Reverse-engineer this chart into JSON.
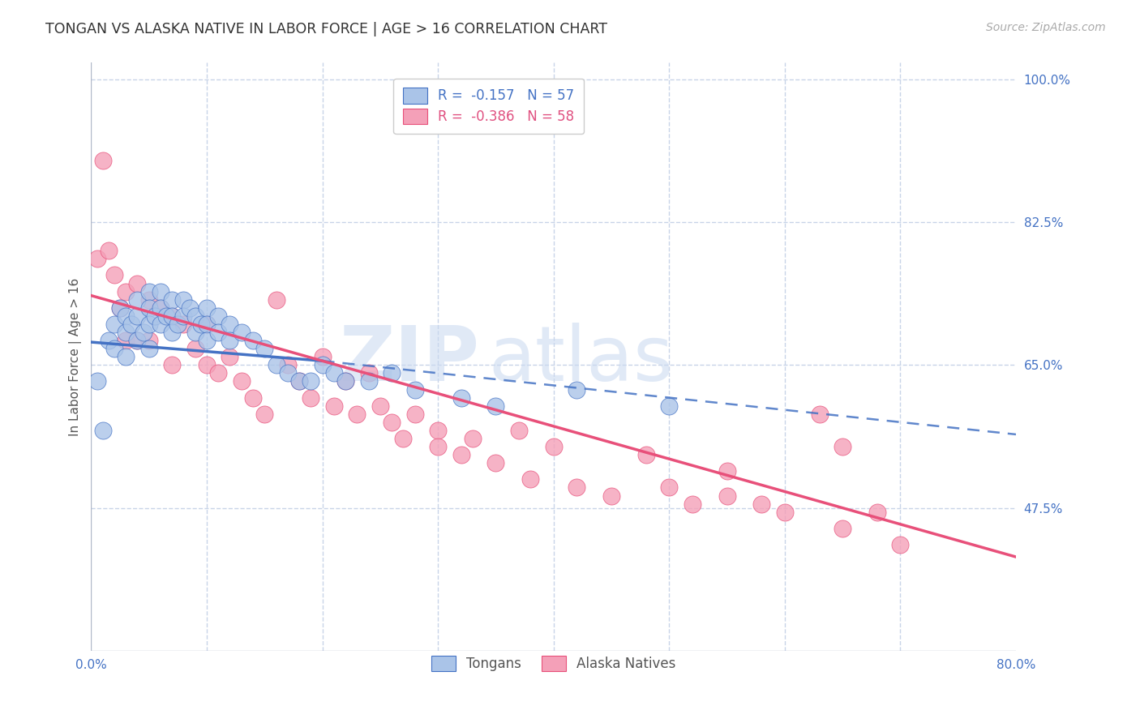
{
  "title": "TONGAN VS ALASKA NATIVE IN LABOR FORCE | AGE > 16 CORRELATION CHART",
  "source": "Source: ZipAtlas.com",
  "ylabel": "In Labor Force | Age > 16",
  "x_min": 0.0,
  "x_max": 0.8,
  "y_min": 0.3,
  "y_max": 1.02,
  "y_ticks_right": [
    0.475,
    0.65,
    0.825,
    1.0
  ],
  "y_tick_labels_right": [
    "47.5%",
    "65.0%",
    "82.5%",
    "100.0%"
  ],
  "legend_label1": "R =  -0.157   N = 57",
  "legend_label2": "R =  -0.386   N = 58",
  "legend_label_bottom1": "Tongans",
  "legend_label_bottom2": "Alaska Natives",
  "color_blue": "#aac4e8",
  "color_pink": "#f4a0b8",
  "color_blue_line": "#4472c4",
  "color_pink_line": "#e8507a",
  "color_blue_text": "#4472c4",
  "color_pink_text": "#e05080",
  "watermark_zip": "ZIP",
  "watermark_atlas": "atlas",
  "background_color": "#ffffff",
  "grid_color": "#c8d4e8",
  "tongan_x": [
    0.005,
    0.01,
    0.015,
    0.02,
    0.02,
    0.025,
    0.03,
    0.03,
    0.03,
    0.035,
    0.04,
    0.04,
    0.04,
    0.045,
    0.05,
    0.05,
    0.05,
    0.05,
    0.055,
    0.06,
    0.06,
    0.06,
    0.065,
    0.07,
    0.07,
    0.07,
    0.075,
    0.08,
    0.08,
    0.085,
    0.09,
    0.09,
    0.095,
    0.1,
    0.1,
    0.1,
    0.11,
    0.11,
    0.12,
    0.12,
    0.13,
    0.14,
    0.15,
    0.16,
    0.17,
    0.18,
    0.19,
    0.2,
    0.21,
    0.22,
    0.24,
    0.26,
    0.28,
    0.32,
    0.35,
    0.42,
    0.5
  ],
  "tongan_y": [
    0.63,
    0.57,
    0.68,
    0.7,
    0.67,
    0.72,
    0.71,
    0.69,
    0.66,
    0.7,
    0.73,
    0.71,
    0.68,
    0.69,
    0.74,
    0.72,
    0.7,
    0.67,
    0.71,
    0.74,
    0.72,
    0.7,
    0.71,
    0.73,
    0.71,
    0.69,
    0.7,
    0.73,
    0.71,
    0.72,
    0.71,
    0.69,
    0.7,
    0.72,
    0.7,
    0.68,
    0.71,
    0.69,
    0.7,
    0.68,
    0.69,
    0.68,
    0.67,
    0.65,
    0.64,
    0.63,
    0.63,
    0.65,
    0.64,
    0.63,
    0.63,
    0.64,
    0.62,
    0.61,
    0.6,
    0.62,
    0.6
  ],
  "alaska_x": [
    0.005,
    0.01,
    0.015,
    0.02,
    0.025,
    0.03,
    0.03,
    0.04,
    0.04,
    0.05,
    0.05,
    0.06,
    0.07,
    0.07,
    0.08,
    0.09,
    0.1,
    0.1,
    0.11,
    0.12,
    0.13,
    0.14,
    0.15,
    0.16,
    0.17,
    0.18,
    0.19,
    0.2,
    0.21,
    0.22,
    0.23,
    0.24,
    0.25,
    0.26,
    0.27,
    0.28,
    0.3,
    0.3,
    0.32,
    0.33,
    0.35,
    0.37,
    0.38,
    0.4,
    0.42,
    0.45,
    0.48,
    0.5,
    0.52,
    0.55,
    0.55,
    0.58,
    0.6,
    0.63,
    0.65,
    0.65,
    0.68,
    0.7
  ],
  "alaska_y": [
    0.78,
    0.9,
    0.79,
    0.76,
    0.72,
    0.74,
    0.68,
    0.75,
    0.68,
    0.73,
    0.68,
    0.72,
    0.71,
    0.65,
    0.7,
    0.67,
    0.7,
    0.65,
    0.64,
    0.66,
    0.63,
    0.61,
    0.59,
    0.73,
    0.65,
    0.63,
    0.61,
    0.66,
    0.6,
    0.63,
    0.59,
    0.64,
    0.6,
    0.58,
    0.56,
    0.59,
    0.57,
    0.55,
    0.54,
    0.56,
    0.53,
    0.57,
    0.51,
    0.55,
    0.5,
    0.49,
    0.54,
    0.5,
    0.48,
    0.52,
    0.49,
    0.48,
    0.47,
    0.59,
    0.45,
    0.55,
    0.47,
    0.43
  ],
  "tongan_line_x0": 0.0,
  "tongan_line_x_solid_end": 0.2,
  "tongan_line_x1": 0.8,
  "tongan_line_y0": 0.678,
  "tongan_line_y_solid_end": 0.655,
  "tongan_line_y1": 0.565,
  "alaska_line_x0": 0.0,
  "alaska_line_x1": 0.8,
  "alaska_line_y0": 0.735,
  "alaska_line_y1": 0.415
}
